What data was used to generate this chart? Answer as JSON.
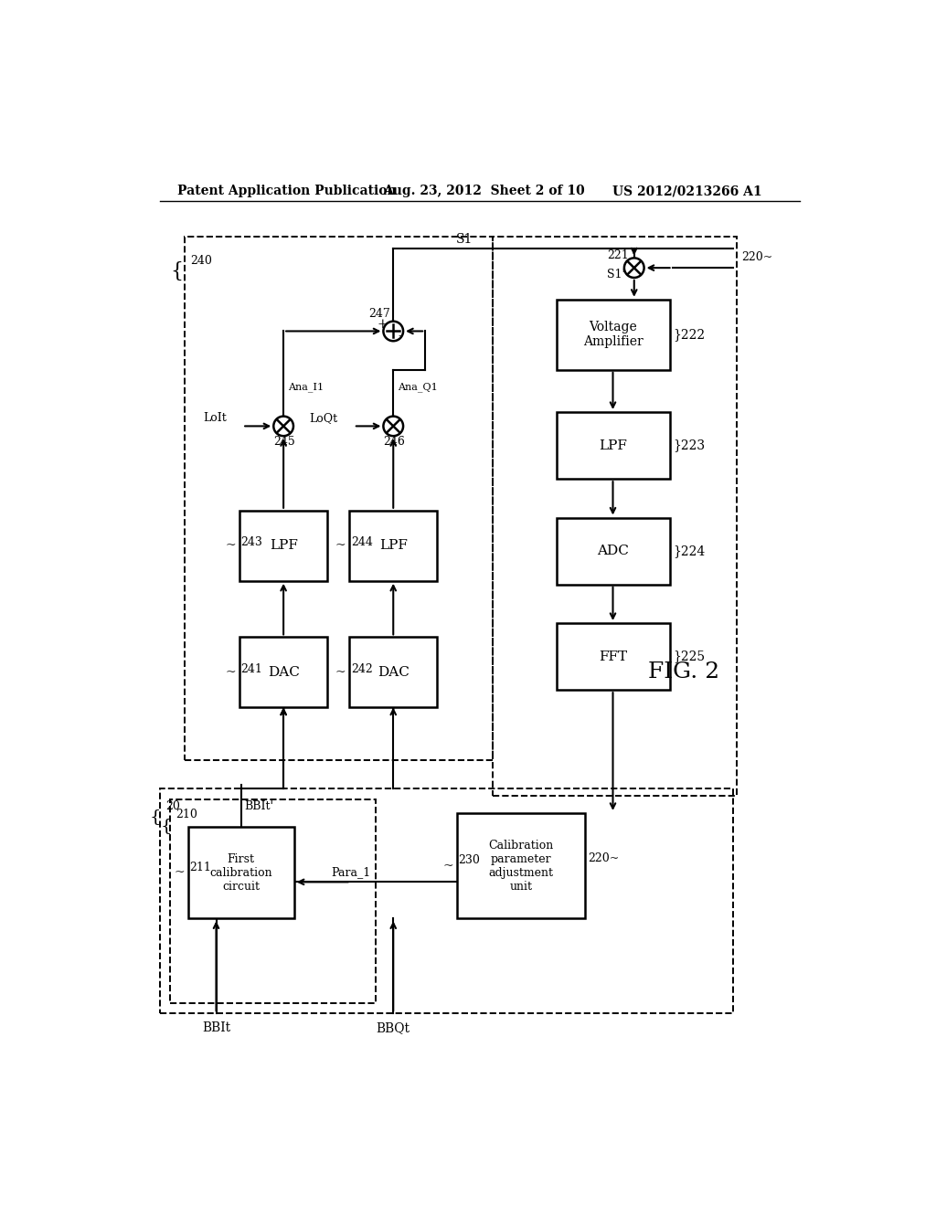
{
  "title_left": "Patent Application Publication",
  "title_mid": "Aug. 23, 2012  Sheet 2 of 10",
  "title_right": "US 2012/0213266 A1",
  "fig_label": "FIG. 2",
  "background": "#ffffff"
}
